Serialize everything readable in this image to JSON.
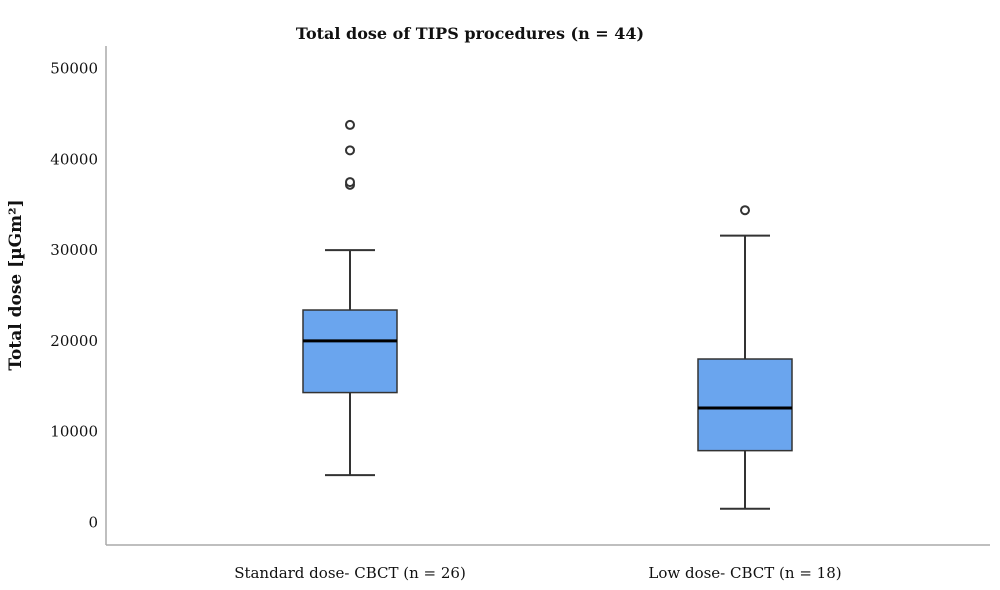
{
  "chart_data": {
    "type": "box",
    "title": "Total dose of TIPS procedures (n = 44)",
    "ylabel": "Total dose [µGm²]",
    "xlabel": "",
    "ylim": [
      -2500,
      52500
    ],
    "yticks": [
      0,
      10000,
      20000,
      30000,
      40000,
      50000
    ],
    "grid": false,
    "box_color": "#6aa5ee",
    "line_color": "#333333",
    "categories": [
      "Standard dose- CBCT (n = 26)",
      "Low dose- CBCT (n = 18)"
    ],
    "boxes": [
      {
        "whisker_low": 5200,
        "q1": 14300,
        "median": 20000,
        "q3": 23400,
        "whisker_high": 30000,
        "outliers": [
          37200,
          37500,
          41000,
          43800
        ]
      },
      {
        "whisker_low": 1500,
        "q1": 7900,
        "median": 12600,
        "q3": 18000,
        "whisker_high": 31600,
        "outliers": [
          34400
        ]
      }
    ]
  }
}
